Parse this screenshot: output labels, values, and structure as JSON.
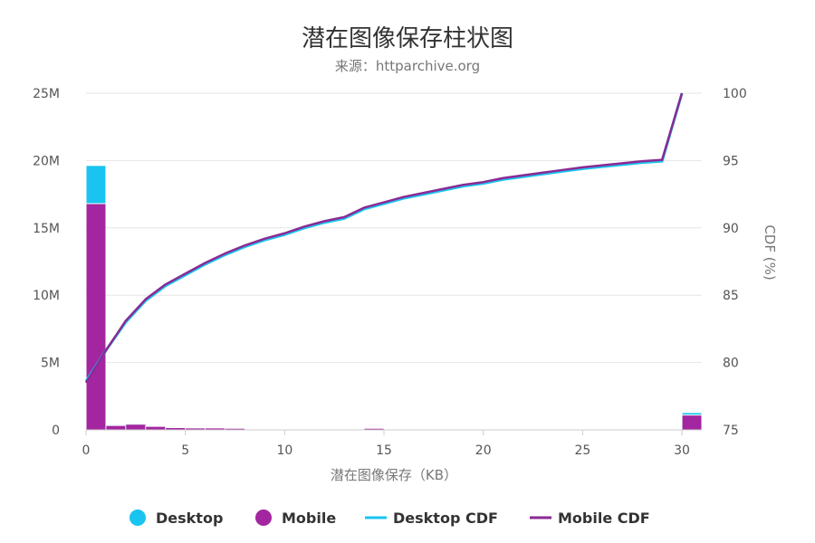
{
  "title": "潜在图像保存柱状图",
  "subtitle": "来源：httparchive.org",
  "colors": {
    "desktop": "#19c4f0",
    "mobile": "#a3259f",
    "desktop_cdf": "#19c4f0",
    "mobile_cdf": "#8a2a93",
    "grid": "#e6e6e6",
    "axis": "#cccccc"
  },
  "chart_data": {
    "type": "bar",
    "title": "潜在图像保存柱状图",
    "subtitle": "来源：httparchive.org",
    "xlabel": "潜在图像保存（KB）",
    "ylabel_left": "",
    "ylabel_right": "CDF (%)",
    "xlim": [
      0,
      31
    ],
    "ylim_left": [
      0,
      25000000
    ],
    "ylim_right": [
      75,
      100
    ],
    "x_ticks": [
      0,
      5,
      10,
      15,
      20,
      25,
      30
    ],
    "y_left_ticks": [
      "0",
      "5M",
      "10M",
      "15M",
      "20M",
      "25M"
    ],
    "y_left_tick_values": [
      0,
      5000000,
      10000000,
      15000000,
      20000000,
      25000000
    ],
    "y_right_ticks": [
      "75",
      "80",
      "85",
      "90",
      "95",
      "100"
    ],
    "y_right_tick_values": [
      75,
      80,
      85,
      90,
      95,
      100
    ],
    "grid": true,
    "legend_position": "bottom",
    "bins": [
      0,
      1,
      2,
      3,
      4,
      5,
      6,
      7,
      8,
      9,
      10,
      11,
      12,
      13,
      14,
      15,
      16,
      17,
      18,
      19,
      20,
      21,
      22,
      23,
      24,
      25,
      26,
      27,
      28,
      29,
      30
    ],
    "series": [
      {
        "name": "Desktop",
        "kind": "bar",
        "values": [
          19600000,
          350000,
          450000,
          280000,
          180000,
          150000,
          150000,
          130000,
          50000,
          30000,
          30000,
          30000,
          30000,
          30000,
          130000,
          20000,
          20000,
          20000,
          20000,
          20000,
          20000,
          20000,
          20000,
          20000,
          20000,
          20000,
          20000,
          20000,
          20000,
          20000,
          1250000
        ]
      },
      {
        "name": "Mobile",
        "kind": "bar",
        "values": [
          16800000,
          330000,
          420000,
          260000,
          170000,
          140000,
          140000,
          120000,
          45000,
          28000,
          28000,
          28000,
          28000,
          28000,
          120000,
          18000,
          18000,
          18000,
          18000,
          18000,
          18000,
          18000,
          18000,
          18000,
          18000,
          18000,
          18000,
          18000,
          18000,
          18000,
          1100000
        ]
      },
      {
        "name": "Desktop CDF",
        "kind": "line",
        "x": [
          0,
          1,
          2,
          3,
          4,
          5,
          6,
          7,
          8,
          9,
          10,
          11,
          12,
          13,
          14,
          15,
          16,
          17,
          18,
          19,
          20,
          21,
          22,
          23,
          24,
          25,
          26,
          27,
          28,
          29,
          30
        ],
        "values": [
          78.6,
          80.9,
          83.0,
          84.6,
          85.7,
          86.5,
          87.3,
          88.0,
          88.6,
          89.1,
          89.5,
          90.0,
          90.4,
          90.7,
          91.4,
          91.8,
          92.2,
          92.5,
          92.8,
          93.1,
          93.3,
          93.6,
          93.8,
          94.0,
          94.2,
          94.4,
          94.55,
          94.7,
          94.85,
          94.95,
          100
        ]
      },
      {
        "name": "Mobile CDF",
        "kind": "line",
        "x": [
          0,
          1,
          2,
          3,
          4,
          5,
          6,
          7,
          8,
          9,
          10,
          11,
          12,
          13,
          14,
          15,
          16,
          17,
          18,
          19,
          20,
          21,
          22,
          23,
          24,
          25,
          26,
          27,
          28,
          29,
          30
        ],
        "values": [
          78.5,
          80.9,
          83.1,
          84.7,
          85.8,
          86.6,
          87.4,
          88.1,
          88.7,
          89.2,
          89.6,
          90.1,
          90.5,
          90.8,
          91.5,
          91.9,
          92.3,
          92.6,
          92.9,
          93.2,
          93.4,
          93.7,
          93.9,
          94.1,
          94.3,
          94.5,
          94.65,
          94.8,
          94.95,
          95.05,
          100
        ]
      }
    ]
  }
}
